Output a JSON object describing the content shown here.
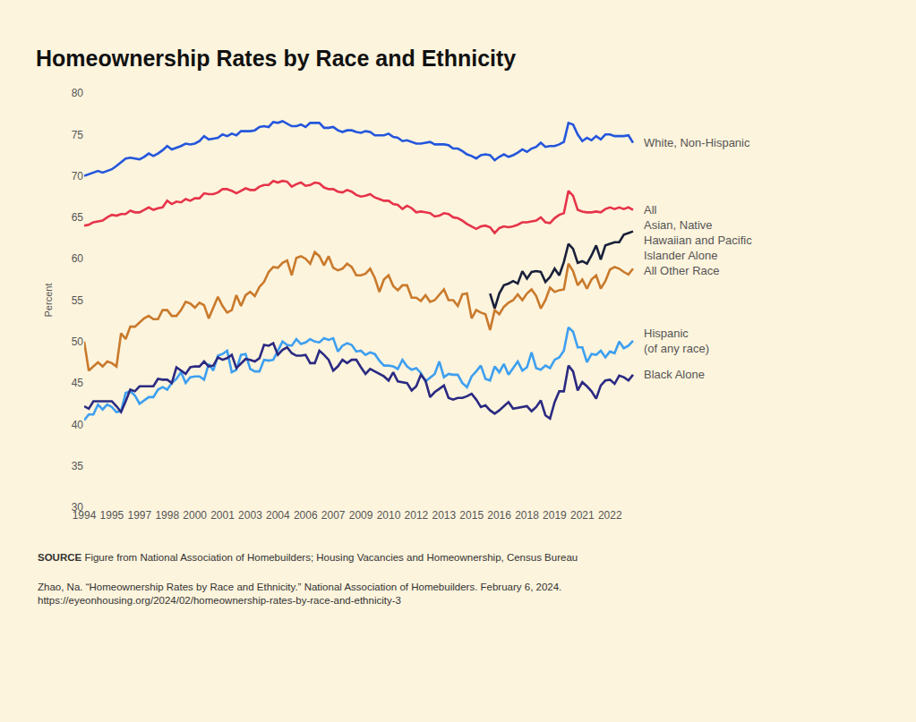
{
  "chart_data": {
    "type": "line",
    "title": "Homeownership Rates by Race and Ethnicity",
    "y_label": "Percent",
    "source_label": "SOURCE",
    "source": "Figure from National Association of Homebuilders; Housing Vacancies and Homeownership, Census Bureau",
    "citation": [
      "Zhao, Na. “Homeownership Rates by Race and Ethnicity.” National Association of Homebuilders. February 6, 2024.",
      "https://eyeonhousing.org/2024/02/homeownership-rates-by-race-and-ethnicity-3"
    ],
    "categories": [
      "1994",
      null,
      null,
      null,
      null,
      null,
      "1995",
      null,
      null,
      null,
      null,
      null,
      "1997",
      null,
      null,
      null,
      null,
      null,
      "1998",
      null,
      null,
      null,
      null,
      null,
      "2000",
      null,
      null,
      null,
      null,
      null,
      "2001",
      null,
      null,
      null,
      null,
      null,
      "2003",
      null,
      null,
      null,
      null,
      null,
      "2004",
      null,
      null,
      null,
      null,
      null,
      "2006",
      null,
      null,
      null,
      null,
      null,
      "2007",
      null,
      null,
      null,
      null,
      null,
      "2009",
      null,
      null,
      null,
      null,
      null,
      "2010",
      null,
      null,
      null,
      null,
      null,
      "2012",
      null,
      null,
      null,
      null,
      null,
      "2013",
      null,
      null,
      null,
      null,
      null,
      "2015",
      null,
      null,
      null,
      null,
      null,
      "2016",
      null,
      null,
      null,
      null,
      null,
      "2018",
      null,
      null,
      null,
      null,
      null,
      "2019",
      null,
      null,
      null,
      null,
      null,
      "2021",
      null,
      null,
      null,
      null,
      null,
      "2022",
      null,
      null,
      null,
      null,
      null
    ],
    "ylim": [
      30,
      80
    ],
    "yticks": [
      30,
      35,
      40,
      45,
      50,
      55,
      60,
      65,
      70,
      75,
      80
    ],
    "grid": false,
    "series": [
      {
        "name": "White, Non-Hispanic",
        "color": "#2456dc",
        "values": [
          70.0,
          70.2,
          70.4,
          70.6,
          70.4,
          70.6,
          70.8,
          71.2,
          71.6,
          72.1,
          72.2,
          72.1,
          72.0,
          72.3,
          72.7,
          72.4,
          72.7,
          73.1,
          73.6,
          73.2,
          73.4,
          73.6,
          73.9,
          73.8,
          73.9,
          74.2,
          74.8,
          74.4,
          74.5,
          74.6,
          75.0,
          74.8,
          75.1,
          74.9,
          75.4,
          75.4,
          75.4,
          75.5,
          75.9,
          76.0,
          75.9,
          76.5,
          76.4,
          76.6,
          76.3,
          76.0,
          76.0,
          76.2,
          75.9,
          76.4,
          76.4,
          76.4,
          75.8,
          75.8,
          75.9,
          75.5,
          75.3,
          75.5,
          75.5,
          75.3,
          75.2,
          75.4,
          75.3,
          74.9,
          74.9,
          74.9,
          75.1,
          74.7,
          74.6,
          74.2,
          74.3,
          74.1,
          73.9,
          73.9,
          74.0,
          74.1,
          73.8,
          73.8,
          73.8,
          73.7,
          73.3,
          73.3,
          73.0,
          72.6,
          72.4,
          72.1,
          72.5,
          72.6,
          72.5,
          71.9,
          72.3,
          72.6,
          72.3,
          72.5,
          72.8,
          73.2,
          72.9,
          73.3,
          73.5,
          74.0,
          73.5,
          73.6,
          73.6,
          73.8,
          74.1,
          76.4,
          76.2,
          75.0,
          74.2,
          74.6,
          74.3,
          74.8,
          74.4,
          75.0,
          75.0,
          74.8,
          74.8,
          74.8,
          74.9,
          74.0
        ]
      },
      {
        "name": "All",
        "color": "#e6344a",
        "values": [
          64.0,
          64.1,
          64.4,
          64.5,
          64.6,
          65.0,
          65.3,
          65.2,
          65.4,
          65.4,
          65.8,
          65.6,
          65.6,
          65.9,
          66.2,
          65.9,
          66.1,
          66.2,
          67.0,
          66.6,
          66.9,
          66.8,
          67.2,
          67.0,
          67.3,
          67.3,
          67.9,
          67.8,
          67.8,
          68.0,
          68.4,
          68.4,
          68.2,
          67.9,
          68.2,
          68.5,
          68.3,
          68.3,
          68.7,
          68.9,
          68.9,
          69.4,
          69.2,
          69.4,
          69.3,
          68.7,
          69.0,
          69.2,
          68.8,
          68.9,
          69.2,
          69.1,
          68.6,
          68.4,
          68.4,
          68.1,
          68.0,
          68.3,
          68.1,
          67.7,
          67.5,
          67.6,
          67.8,
          67.4,
          67.2,
          67.0,
          67.0,
          66.6,
          66.5,
          66.0,
          66.4,
          66.1,
          65.6,
          65.7,
          65.6,
          65.5,
          65.1,
          65.2,
          65.5,
          65.4,
          65.0,
          64.9,
          64.6,
          64.2,
          63.9,
          63.6,
          63.9,
          64.0,
          63.8,
          63.1,
          63.7,
          63.9,
          63.8,
          63.9,
          64.1,
          64.4,
          64.4,
          64.5,
          64.6,
          65.0,
          64.4,
          64.3,
          64.9,
          65.3,
          65.5,
          68.2,
          67.6,
          65.9,
          65.7,
          65.6,
          65.6,
          65.7,
          65.6,
          66.0,
          66.2,
          66.0,
          66.2,
          66.0,
          66.2,
          65.9
        ]
      },
      {
        "name": "Asian, Native Hawaiian and Pacific Islander Alone",
        "color": "#18203a",
        "values": [
          null,
          null,
          null,
          null,
          null,
          null,
          null,
          null,
          null,
          null,
          null,
          null,
          null,
          null,
          null,
          null,
          null,
          null,
          null,
          null,
          null,
          null,
          null,
          null,
          null,
          null,
          null,
          null,
          null,
          null,
          null,
          null,
          null,
          null,
          null,
          null,
          null,
          null,
          null,
          null,
          null,
          null,
          null,
          null,
          null,
          null,
          null,
          null,
          null,
          null,
          null,
          null,
          null,
          null,
          null,
          null,
          null,
          null,
          null,
          null,
          null,
          null,
          null,
          null,
          null,
          null,
          null,
          null,
          null,
          null,
          null,
          null,
          null,
          null,
          null,
          null,
          null,
          null,
          null,
          null,
          null,
          null,
          null,
          null,
          null,
          null,
          null,
          null,
          55.8,
          54.0,
          55.8,
          56.8,
          57.0,
          57.3,
          57.0,
          58.5,
          57.6,
          58.4,
          58.5,
          58.4,
          57.2,
          57.8,
          58.8,
          58.0,
          59.6,
          61.8,
          61.2,
          59.5,
          59.7,
          59.4,
          60.4,
          61.6,
          59.9,
          61.6,
          61.8,
          62.0,
          62.0,
          62.9,
          63.1,
          63.3
        ]
      },
      {
        "name": "All Other Race",
        "color": "#c97a2c",
        "values": [
          50.0,
          46.5,
          47.0,
          47.5,
          47.0,
          47.6,
          47.4,
          47.0,
          51.0,
          50.3,
          51.8,
          51.8,
          52.3,
          52.8,
          53.1,
          52.7,
          52.7,
          53.8,
          53.8,
          53.1,
          53.1,
          53.8,
          54.8,
          54.6,
          54.1,
          54.7,
          54.4,
          52.8,
          54.1,
          55.4,
          54.3,
          53.5,
          53.8,
          55.6,
          54.3,
          55.6,
          56.0,
          55.5,
          56.6,
          57.2,
          58.4,
          59.0,
          58.9,
          59.5,
          59.8,
          58.0,
          60.1,
          60.3,
          60.0,
          59.4,
          60.8,
          60.3,
          59.2,
          60.3,
          58.9,
          58.6,
          58.8,
          59.4,
          59.0,
          58.0,
          58.0,
          58.2,
          58.8,
          57.7,
          56.0,
          57.5,
          58.0,
          56.7,
          56.2,
          56.8,
          56.8,
          55.3,
          55.3,
          54.9,
          55.6,
          54.8,
          55.0,
          55.7,
          56.3,
          55.0,
          55.0,
          54.3,
          55.7,
          55.8,
          52.8,
          53.8,
          53.5,
          53.3,
          51.4,
          53.8,
          53.3,
          54.2,
          54.7,
          55.0,
          55.7,
          55.0,
          55.8,
          56.3,
          55.5,
          54.0,
          55.0,
          56.5,
          56.0,
          56.2,
          56.3,
          59.4,
          58.5,
          56.8,
          57.5,
          56.4,
          57.5,
          58.0,
          56.4,
          57.3,
          58.7,
          59.0,
          58.8,
          58.4,
          58.1,
          58.8
        ]
      },
      {
        "name": "Hispanic (of any race)",
        "color": "#3d9ff0",
        "values": [
          40.5,
          41.2,
          41.2,
          42.4,
          41.8,
          42.4,
          42.1,
          41.5,
          41.6,
          43.8,
          44.0,
          43.5,
          42.5,
          42.9,
          43.3,
          43.3,
          44.2,
          44.5,
          44.2,
          45.0,
          45.5,
          46.3,
          45.0,
          45.7,
          45.8,
          45.8,
          45.4,
          47.3,
          46.5,
          48.3,
          48.5,
          48.9,
          46.3,
          46.6,
          48.4,
          48.5,
          46.7,
          46.4,
          46.4,
          47.8,
          47.7,
          47.8,
          48.9,
          50.0,
          49.6,
          49.5,
          50.3,
          49.7,
          49.9,
          50.3,
          50.0,
          49.9,
          50.4,
          50.2,
          50.4,
          48.8,
          49.5,
          49.8,
          49.6,
          48.8,
          48.9,
          48.4,
          48.7,
          48.5,
          47.7,
          47.1,
          47.1,
          47.0,
          46.7,
          47.8,
          47.0,
          46.6,
          46.8,
          46.2,
          45.2,
          45.6,
          46.1,
          47.6,
          45.7,
          46.1,
          46.0,
          46.0,
          45.0,
          44.5,
          45.8,
          46.4,
          47.1,
          45.5,
          45.3,
          47.0,
          46.3,
          47.3,
          46.0,
          46.8,
          47.6,
          46.5,
          46.9,
          48.7,
          46.8,
          46.6,
          47.1,
          46.8,
          47.8,
          48.1,
          48.9,
          51.7,
          51.2,
          49.3,
          49.3,
          47.5,
          48.5,
          48.4,
          48.9,
          48.1,
          48.8,
          48.6,
          50.0,
          49.2,
          49.5,
          50.1
        ]
      },
      {
        "name": "Black Alone",
        "color": "#2b2a82",
        "values": [
          42.2,
          41.9,
          42.8,
          42.8,
          42.8,
          42.8,
          42.8,
          42.2,
          41.5,
          42.8,
          44.2,
          44.0,
          44.6,
          44.6,
          44.6,
          44.6,
          45.5,
          45.4,
          45.4,
          45.0,
          46.9,
          46.5,
          46.1,
          46.9,
          47.0,
          47.0,
          47.6,
          47.0,
          47.1,
          48.1,
          47.8,
          48.0,
          48.4,
          46.8,
          47.4,
          47.9,
          47.8,
          47.6,
          48.0,
          49.6,
          49.5,
          49.8,
          48.4,
          49.0,
          49.3,
          48.6,
          48.3,
          48.3,
          48.4,
          47.4,
          47.4,
          48.9,
          48.4,
          47.8,
          46.5,
          47.0,
          47.8,
          47.4,
          47.8,
          47.8,
          46.9,
          46.1,
          46.7,
          46.4,
          46.1,
          45.8,
          45.3,
          46.3,
          45.2,
          45.1,
          45.0,
          44.1,
          44.6,
          46.0,
          45.3,
          43.3,
          43.9,
          44.3,
          44.7,
          43.2,
          43.0,
          43.2,
          43.2,
          43.4,
          43.7,
          43.0,
          42.1,
          42.3,
          41.7,
          41.3,
          41.7,
          42.2,
          42.7,
          41.9,
          42.0,
          42.1,
          42.2,
          41.6,
          42.1,
          42.9,
          41.1,
          40.7,
          42.7,
          44.0,
          44.0,
          47.1,
          46.4,
          44.1,
          45.1,
          44.6,
          44.0,
          43.1,
          44.7,
          45.3,
          45.4,
          44.9,
          45.9,
          45.7,
          45.3,
          46.0
        ]
      }
    ]
  }
}
